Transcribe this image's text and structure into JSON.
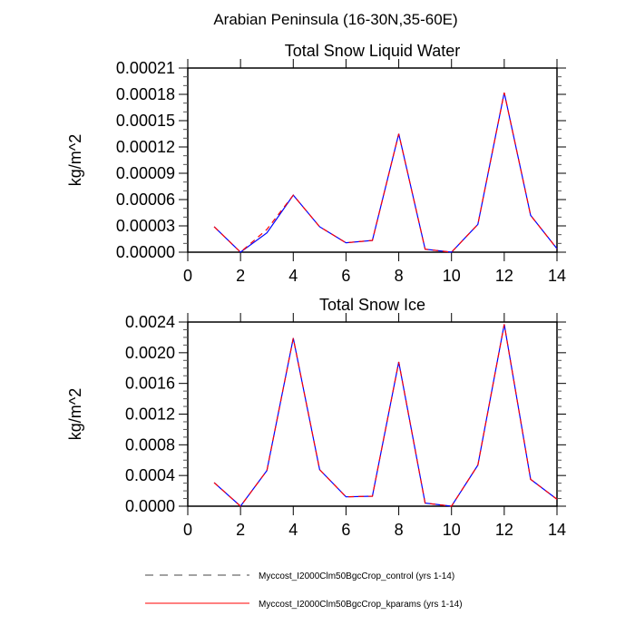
{
  "suptitle": "Arabian Peninsula (16-30N,35-60E)",
  "legend": [
    {
      "label": "Myccost_I2000Clm50BgcCrop_control (yrs 1-14)",
      "color": "#0000ff",
      "style": "dashed"
    },
    {
      "label": "Myccost_I2000Clm50BgcCrop_kparams (yrs 1-14)",
      "color": "#ff0000",
      "style": "solid"
    }
  ],
  "chart_data": [
    {
      "type": "line",
      "title": "Total Snow Liquid Water",
      "xlabel": "",
      "ylabel": "kg/m^2",
      "xlim": [
        0,
        14
      ],
      "ylim": [
        0,
        0.00021
      ],
      "xticks": [
        0,
        2,
        4,
        6,
        8,
        10,
        12,
        14
      ],
      "yticks": [
        0,
        3e-05,
        6e-05,
        9e-05,
        0.00012,
        0.00015,
        0.00018,
        0.00021
      ],
      "ytick_labels": [
        "0.00000",
        "0.00003",
        "0.00006",
        "0.00009",
        "0.00012",
        "0.00015",
        "0.00018",
        "0.00021"
      ],
      "yminor": 3,
      "x": [
        1,
        2,
        3,
        4,
        5,
        6,
        7,
        8,
        9,
        10,
        11,
        12,
        13,
        14
      ],
      "series": [
        {
          "name": "Myccost_I2000Clm50BgcCrop_control (yrs 1-14)",
          "values": [
            2.9e-05,
            0,
            2.2e-05,
            6.5e-05,
            2.9e-05,
            1.07e-05,
            1.34e-05,
            0.000135,
            3.4e-06,
            0,
            3.17e-05,
            0.000182,
            4.2e-05,
            4e-06
          ]
        },
        {
          "name": "Myccost_I2000Clm50BgcCrop_kparams (yrs 1-14)",
          "values": [
            2.9e-05,
            0,
            2.6e-05,
            6.5e-05,
            2.9e-05,
            1.07e-05,
            1.34e-05,
            0.000135,
            3.4e-06,
            0,
            3.17e-05,
            0.000182,
            4.2e-05,
            4e-06
          ]
        }
      ]
    },
    {
      "type": "line",
      "title": "Total Snow Ice",
      "xlabel": "",
      "ylabel": "kg/m^2",
      "xlim": [
        0,
        14
      ],
      "ylim": [
        0,
        0.0024
      ],
      "xticks": [
        0,
        2,
        4,
        6,
        8,
        10,
        12,
        14
      ],
      "yticks": [
        0,
        0.0004,
        0.0008,
        0.0012,
        0.0016,
        0.002,
        0.0024
      ],
      "ytick_labels": [
        "0.0000",
        "0.0004",
        "0.0008",
        "0.0012",
        "0.0016",
        "0.0020",
        "0.0024"
      ],
      "yminor": 4,
      "x": [
        1,
        2,
        3,
        4,
        5,
        6,
        7,
        8,
        9,
        10,
        11,
        12,
        13,
        14
      ],
      "series": [
        {
          "name": "Myccost_I2000Clm50BgcCrop_control (yrs 1-14)",
          "values": [
            0.000307,
            0,
            0.000464,
            0.00219,
            0.000476,
            0.000122,
            0.00013,
            0.00188,
            4e-05,
            0,
            0.000535,
            0.00237,
            0.00035,
            9e-05
          ]
        },
        {
          "name": "Myccost_I2000Clm50BgcCrop_kparams (yrs 1-14)",
          "values": [
            0.000307,
            0,
            0.000464,
            0.00219,
            0.000476,
            0.000122,
            0.00013,
            0.00188,
            4e-05,
            0,
            0.000535,
            0.00237,
            0.00035,
            9e-05
          ]
        }
      ]
    }
  ]
}
